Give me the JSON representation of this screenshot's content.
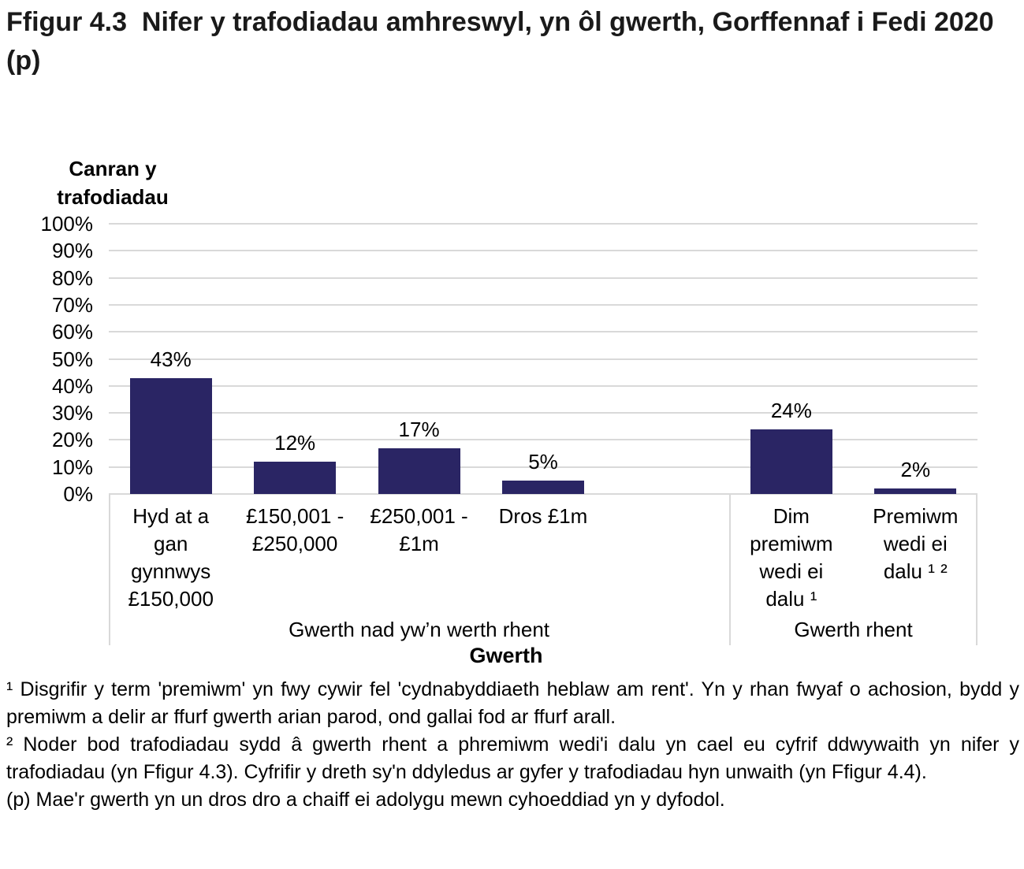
{
  "title": "Ffigur 4.3  Nifer y trafodiadau amhreswyl, yn ôl gwerth, Gorffennaf i Fedi 2020 (p)",
  "chart_data": {
    "type": "bar",
    "y_axis_title": "Canran y trafodiadau",
    "x_axis_title": "Gwerth",
    "ylim": [
      0,
      100
    ],
    "grid": true,
    "gridline_color": "#d9d9d9",
    "bar_color": "#2a2564",
    "ytick_labels": [
      "100%",
      "90%",
      "80%",
      "70%",
      "60%",
      "50%",
      "40%",
      "30%",
      "20%",
      "10%",
      "0%"
    ],
    "groups": [
      {
        "label": "Gwerth nad yw’n werth rhent",
        "categories": [
          "Hyd at a gan gynnwys £150,000",
          "£150,001 - £250,000",
          "£250,001 - £1m",
          "Dros £1m"
        ],
        "values": [
          43,
          12,
          17,
          5
        ],
        "value_labels": [
          "43%",
          "12%",
          "17%",
          "5%"
        ]
      },
      {
        "label": "Gwerth rhent",
        "categories": [
          "Dim premiwm wedi ei dalu ¹",
          "Premiwm wedi ei dalu ¹ ²"
        ],
        "values": [
          24,
          2
        ],
        "value_labels": [
          "24%",
          "2%"
        ]
      }
    ]
  },
  "footnotes": [
    "¹ Disgrifir y term 'premiwm' yn fwy cywir fel 'cydnabyddiaeth heblaw am rent'. Yn y rhan fwyaf o achosion, bydd y premiwm a delir ar ffurf gwerth arian parod, ond gallai fod ar ffurf arall.",
    "² Noder bod trafodiadau sydd â gwerth rhent a phremiwm wedi'i dalu yn cael eu cyfrif ddwywaith yn nifer y trafodiadau (yn Ffigur 4.3). Cyfrifir y dreth sy'n ddyledus ar gyfer y trafodiadau hyn unwaith (yn Ffigur 4.4).",
    "(p) Mae'r gwerth yn un dros dro a chaiff ei adolygu mewn cyhoeddiad yn y dyfodol."
  ]
}
